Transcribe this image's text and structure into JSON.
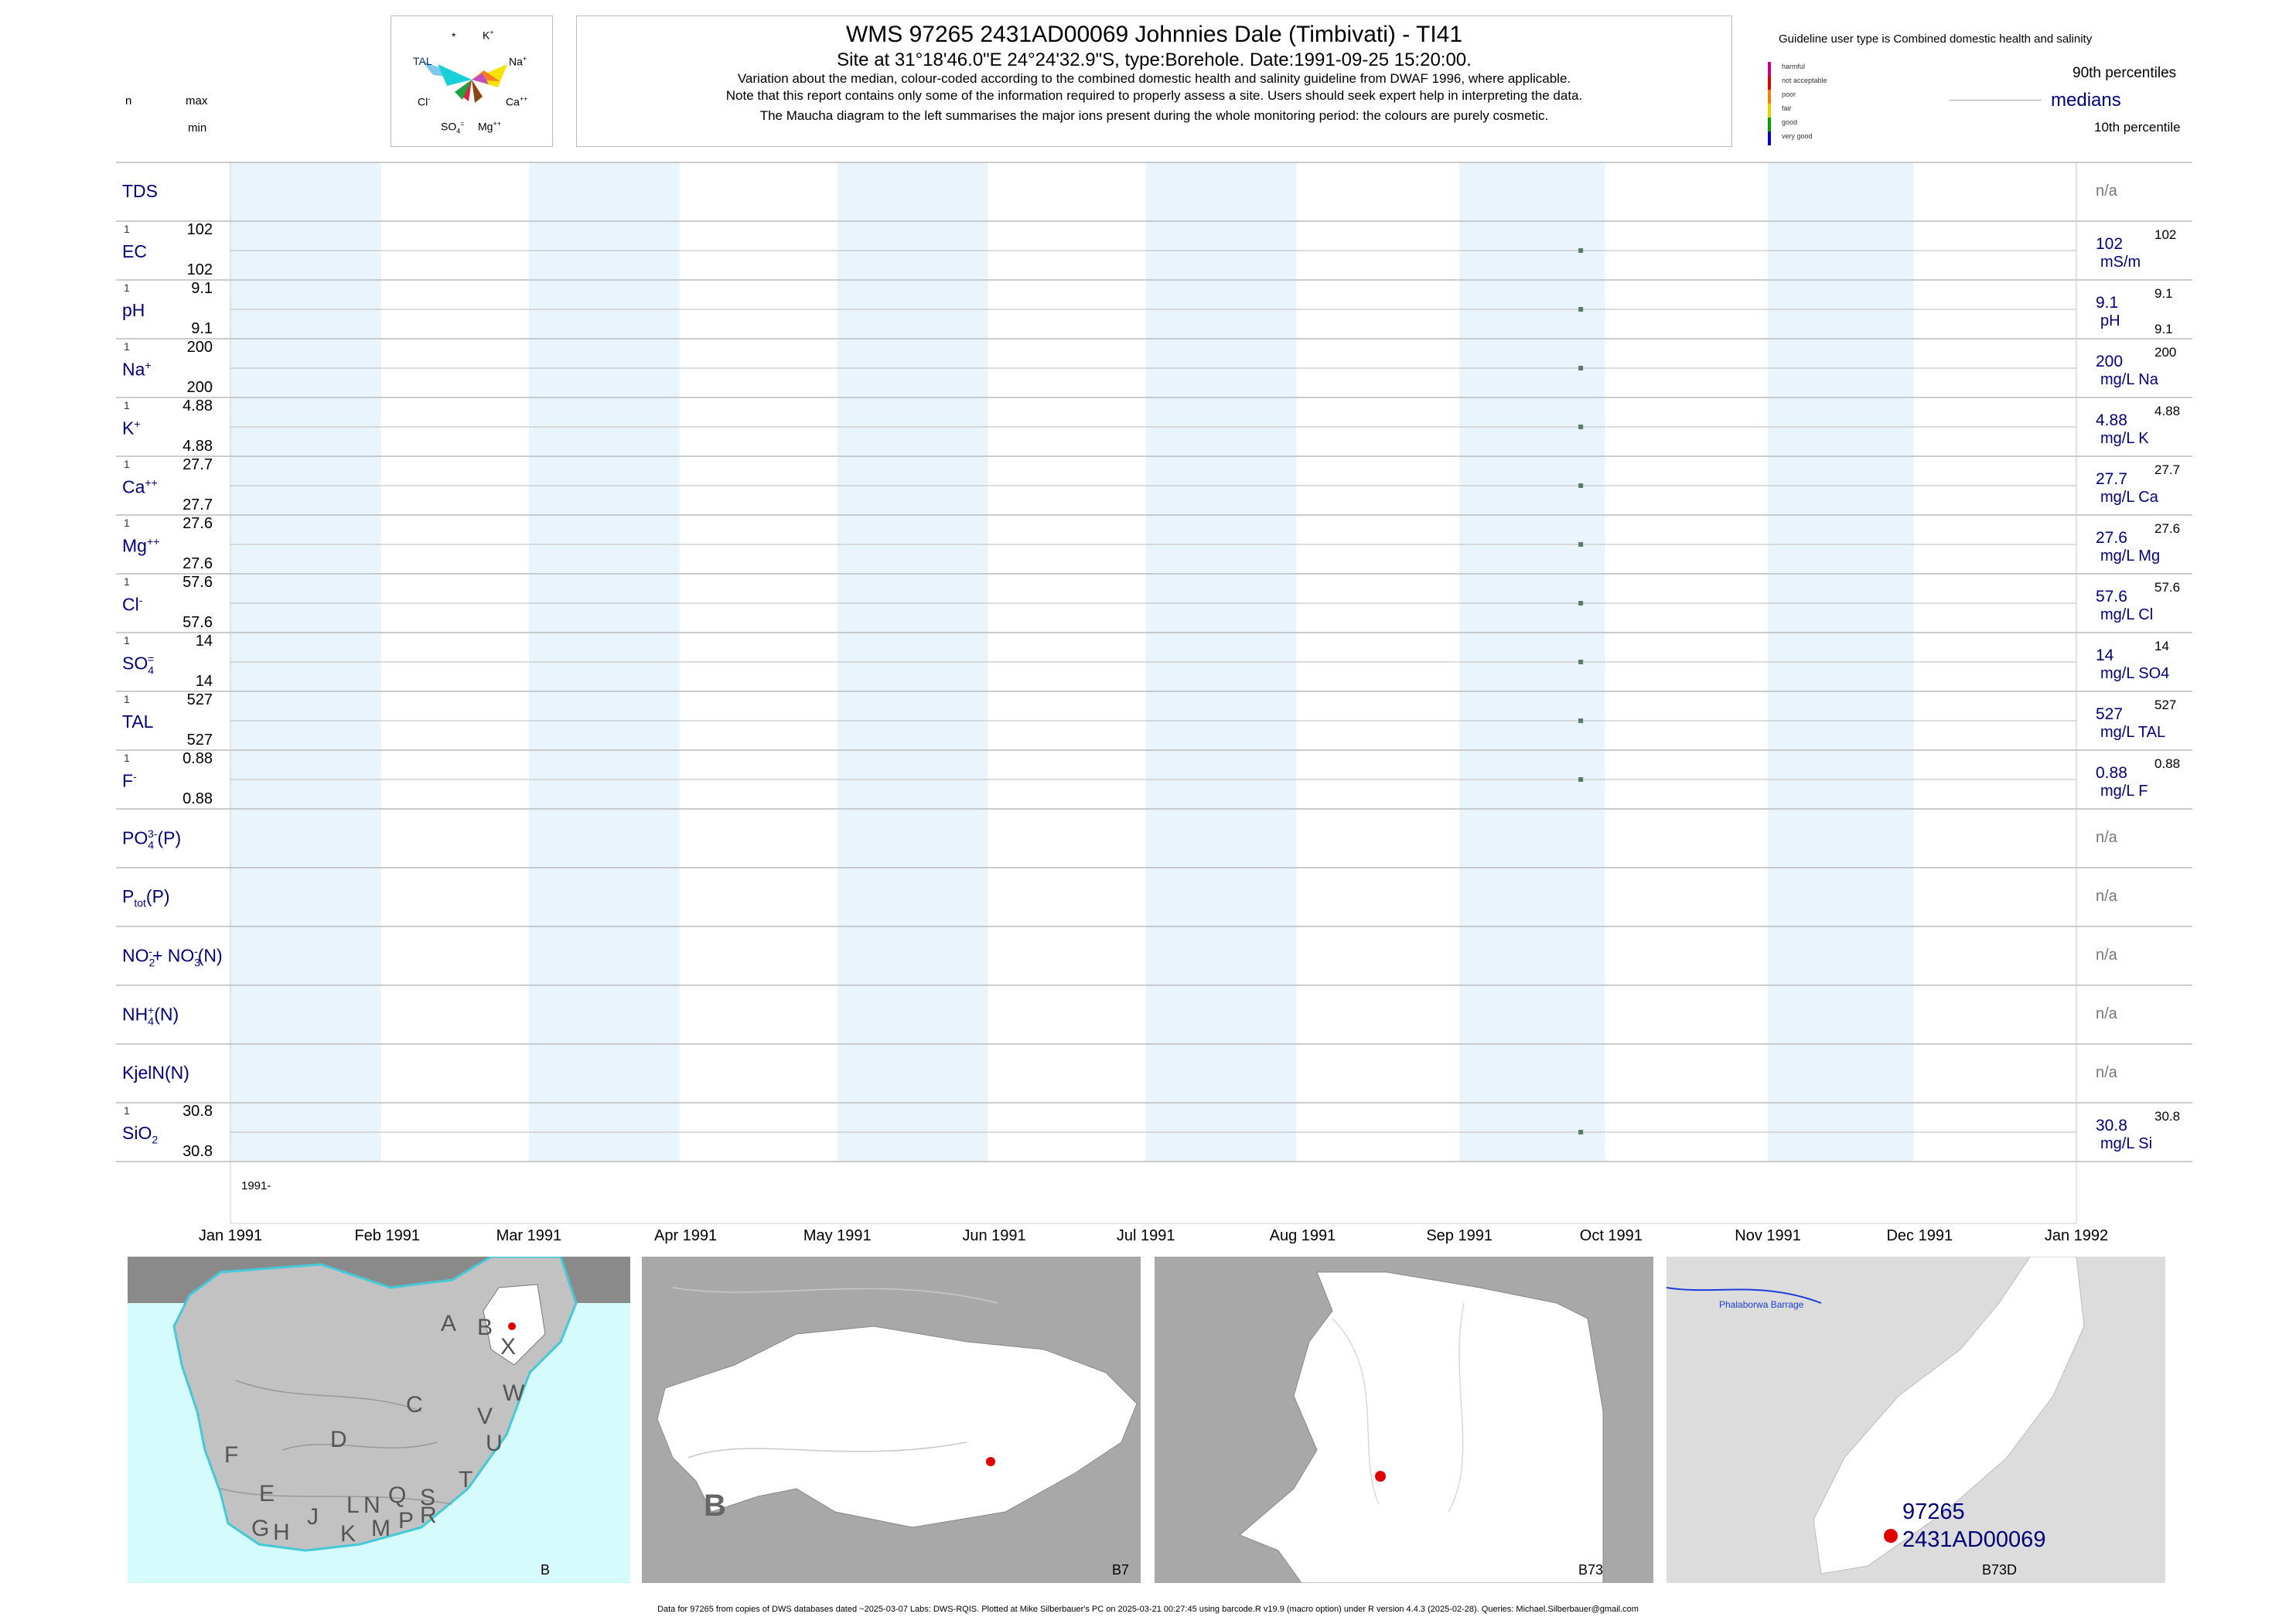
{
  "header": {
    "title": "WMS 97265 2431AD00069 Johnnies Dale (Timbivati) - TI41",
    "subtitle": "Site at 31°18'46.0\"E 24°24'32.9\"S, type:Borehole. Date:1991-09-25 15:20:00.",
    "notes": [
      "Variation about the median,  colour-coded according to the combined domestic health and salinity guideline from DWAF 1996, where applicable.",
      "Note that this report contains only some of the information required to properly assess a site. Users should seek expert help in interpreting the data.",
      "The Maucha diagram to the left summarises the major ions present during the whole monitoring period: the colours are purely cosmetic."
    ],
    "col_n": "n",
    "col_max": "max",
    "col_min": "min"
  },
  "maucha": {
    "labels": {
      "star": "*",
      "k": "K",
      "k_sup": "+",
      "tal": "TAL",
      "na": "Na",
      "na_sup": "+",
      "cl": "Cl",
      "cl_sup": "-",
      "ca": "Ca",
      "ca_sup": "++",
      "so4": "SO",
      "so4_sub": "4",
      "so4_sup": "=",
      "mg": "Mg",
      "mg_sup": "++"
    }
  },
  "legend": {
    "guideline": "Guideline user type is Combined domestic health and salinity",
    "classes": [
      "harmful",
      "not acceptable",
      "poor",
      "fair",
      "good",
      "very good"
    ],
    "class_colors": [
      "#c0008c",
      "#e00000",
      "#f08000",
      "#e8d000",
      "#00a000",
      "#0000c0"
    ],
    "p90": "90th percentiles",
    "medians": "medians",
    "p10": "10th percentile"
  },
  "chart_data": {
    "type": "scatter",
    "x_range": [
      "1991-01-01",
      "1992-01-01"
    ],
    "x_ticks": [
      "Jan 1991",
      "Feb 1991",
      "Mar 1991",
      "Apr 1991",
      "May 1991",
      "Jun 1991",
      "Jul 1991",
      "Aug 1991",
      "Sep 1991",
      "Oct 1991",
      "Nov 1991",
      "Dec 1991",
      "Jan 1992"
    ],
    "year_label": "1991-",
    "sample_date": "1991-09-25",
    "point_color": "#5a7a6a",
    "params": [
      {
        "label": "TDS",
        "has_data": false,
        "na": "n/a"
      },
      {
        "label": "EC",
        "has_data": true,
        "n": "1",
        "max": "102",
        "min": "102",
        "median": "102",
        "unit": "mS/m",
        "p90": "102",
        "p10": ""
      },
      {
        "label": "pH",
        "has_data": true,
        "n": "1",
        "max": "9.1",
        "min": "9.1",
        "median": "9.1",
        "unit": "pH",
        "p90": "9.1",
        "p10": "9.1"
      },
      {
        "label": "Na",
        "sup": "+",
        "has_data": true,
        "n": "1",
        "max": "200",
        "min": "200",
        "median": "200",
        "unit": "mg/L Na",
        "p90": "200",
        "p10": ""
      },
      {
        "label": "K",
        "sup": "+",
        "has_data": true,
        "n": "1",
        "max": "4.88",
        "min": "4.88",
        "median": "4.88",
        "unit": "mg/L K",
        "p90": "4.88",
        "p10": ""
      },
      {
        "label": "Ca",
        "sup": "++",
        "has_data": true,
        "n": "1",
        "max": "27.7",
        "min": "27.7",
        "median": "27.7",
        "unit": "mg/L Ca",
        "p90": "27.7",
        "p10": ""
      },
      {
        "label": "Mg",
        "sup": "++",
        "has_data": true,
        "n": "1",
        "max": "27.6",
        "min": "27.6",
        "median": "27.6",
        "unit": "mg/L Mg",
        "p90": "27.6",
        "p10": ""
      },
      {
        "label": "Cl",
        "sup": "-",
        "has_data": true,
        "n": "1",
        "max": "57.6",
        "min": "57.6",
        "median": "57.6",
        "unit": "mg/L Cl",
        "p90": "57.6",
        "p10": ""
      },
      {
        "label": "SO",
        "sub": "4",
        "sup": "=",
        "has_data": true,
        "n": "1",
        "max": "14",
        "min": "14",
        "median": "14",
        "unit": "mg/L SO4",
        "p90": "14",
        "p10": ""
      },
      {
        "label": "TAL",
        "has_data": true,
        "n": "1",
        "max": "527",
        "min": "527",
        "median": "527",
        "unit": "mg/L TAL",
        "p90": "527",
        "p10": ""
      },
      {
        "label": "F",
        "sup": "-",
        "has_data": true,
        "n": "1",
        "max": "0.88",
        "min": "0.88",
        "median": "0.88",
        "unit": "mg/L F",
        "p90": "0.88",
        "p10": ""
      },
      {
        "label": "PO",
        "sub": "4",
        "sup": "3-",
        "suffix": "(P)",
        "has_data": false,
        "na": "n/a"
      },
      {
        "label": "P",
        "sub": "tot",
        "suffix": "(P)",
        "has_data": false,
        "na": "n/a"
      },
      {
        "label": "NO",
        "sub": "2",
        "sup": "-",
        "label2": "+ NO",
        "sub2": "3",
        "sup2": "-",
        "suffix": "(N)",
        "has_data": false,
        "na": "n/a"
      },
      {
        "label": "NH",
        "sub": "4",
        "sup": "+",
        "suffix": "(N)",
        "has_data": false,
        "na": "n/a"
      },
      {
        "label": "KjelN(N)",
        "has_data": false,
        "na": "n/a"
      },
      {
        "label": "SiO",
        "sub": "2",
        "has_data": true,
        "n": "1",
        "max": "30.8",
        "min": "30.8",
        "median": "30.8",
        "unit": "mg/L Si",
        "p90": "30.8",
        "p10": ""
      }
    ]
  },
  "maps": {
    "m1": {
      "region_labels": [
        "A",
        "B",
        "X",
        "W",
        "C",
        "V",
        "U",
        "D",
        "T",
        "F",
        "E",
        "S",
        "J",
        "L",
        "N",
        "Q",
        "R",
        "G",
        "H",
        "K",
        "M",
        "P"
      ],
      "corner": "B"
    },
    "m2": {
      "big": "B",
      "corner": "B7"
    },
    "m3": {
      "corner": "B73"
    },
    "m4": {
      "dam": "Phalaborwa Barrage",
      "site_id": "97265",
      "site_code": "2431AD00069",
      "corner": "B73D"
    }
  },
  "footer": "Data for 97265 from copies of DWS databases dated ~2025-03-07 Labs: DWS-RQIS. Plotted at Mike Silberbauer's PC on 2025-03-21 00:27:45 using barcode.R v19.9 (macro option) under R version 4.4.3 (2025-02-28). Queries: Michael.Silberbauer@gmail.com"
}
